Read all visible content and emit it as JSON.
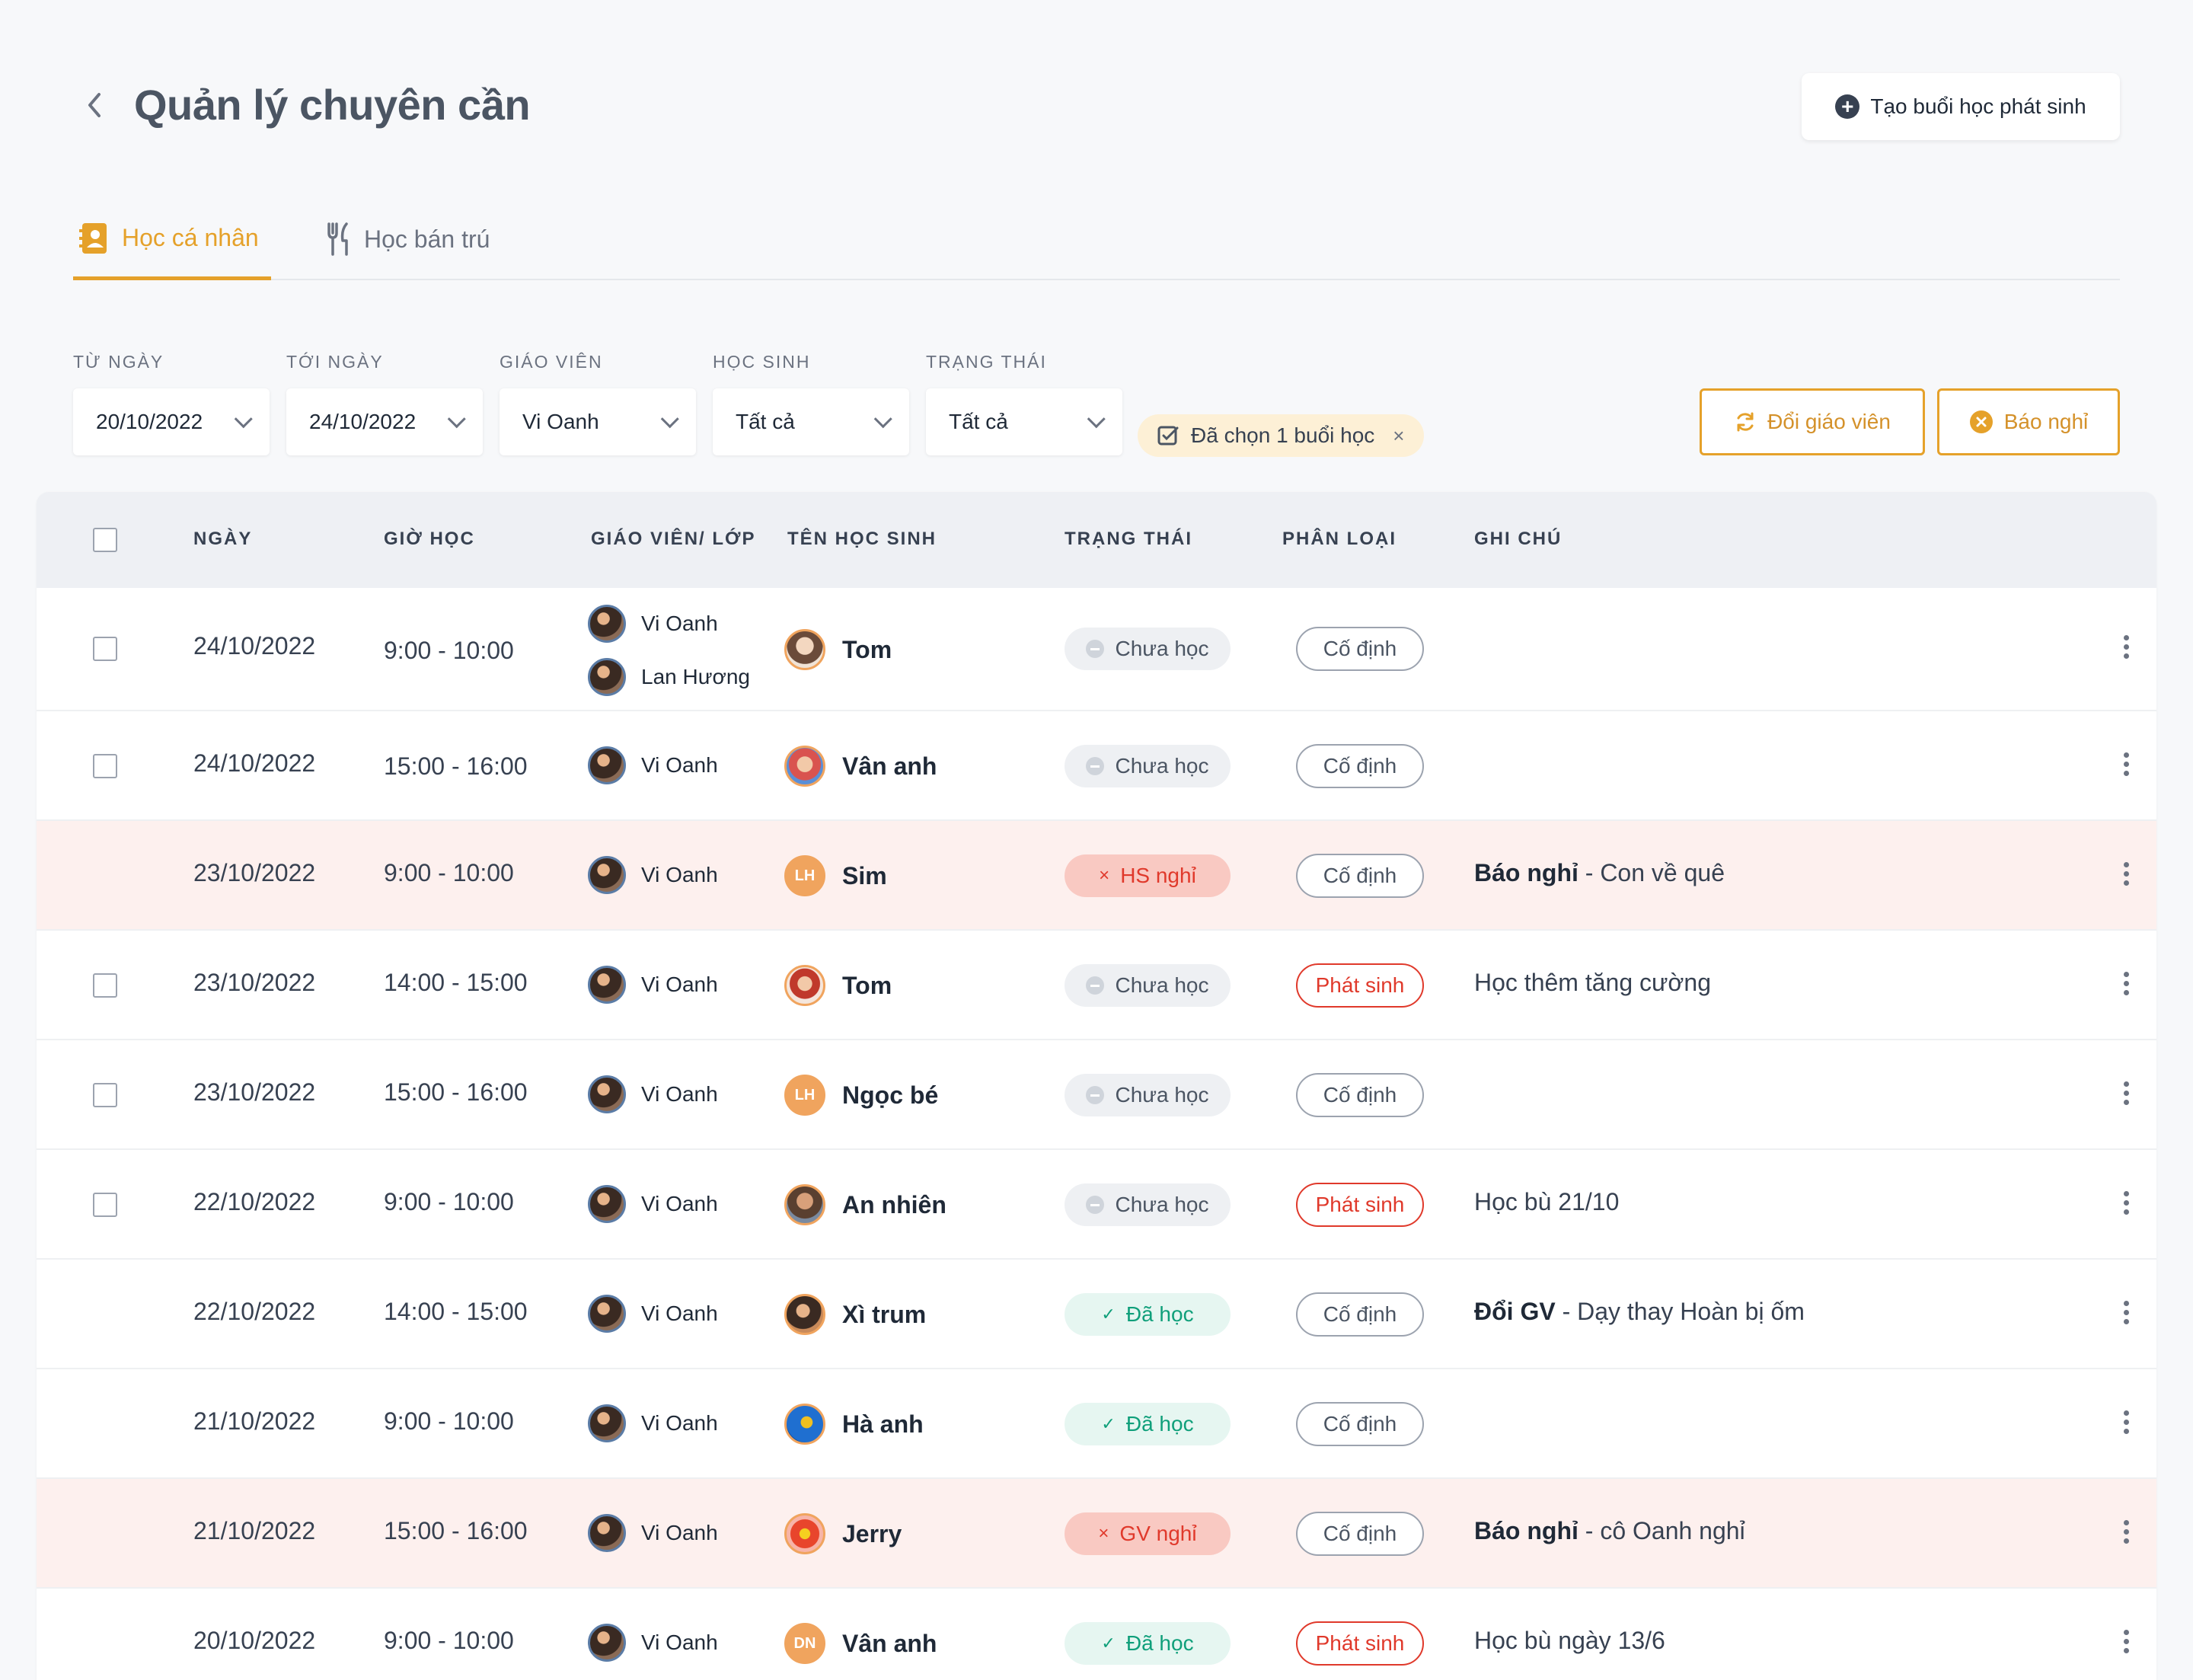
{
  "header": {
    "title": "Quản lý chuyên cần",
    "create_button": "Tạo buổi học phát sinh"
  },
  "tabs": [
    {
      "label": "Học cá nhân",
      "active": true,
      "icon": "contact-book-icon"
    },
    {
      "label": "Học bán trú",
      "active": false,
      "icon": "fork-knife-icon"
    }
  ],
  "filters": {
    "from_label": "TỪ NGÀY",
    "from_value": "20/10/2022",
    "to_label": "TỚI NGÀY",
    "to_value": "24/10/2022",
    "teacher_label": "GIÁO VIÊN",
    "teacher_value": "Vi Oanh",
    "student_label": "HỌC SINH",
    "student_value": "Tất cả",
    "status_label": "TRẠNG THÁI",
    "status_value": "Tất cả",
    "selected_chip": "Đã chọn 1 buổi học"
  },
  "actions": {
    "change_teacher": "Đổi giáo viên",
    "report_absence": "Báo nghỉ"
  },
  "colors": {
    "accent": "#e5a12a",
    "absent_row": "#fdf0ee",
    "done": "#0f9f7a",
    "alert": "#e0392b"
  },
  "table": {
    "headers": [
      "NGÀY",
      "GIỜ HỌC",
      "GIÁO VIÊN/ LỚP",
      "TÊN HỌC SINH",
      "TRẠNG THÁI",
      "PHÂN LOẠI",
      "GHI CHÚ"
    ],
    "rows": [
      {
        "date": "24/10/2022",
        "time": "9:00 - 10:00",
        "teacher": "Vi Oanh",
        "teacher2": "Lan Hương",
        "student": "Tom",
        "status": "Chưa học",
        "kind": "Cố định",
        "note_bold": "",
        "note": ""
      },
      {
        "date": "24/10/2022",
        "time": "15:00 - 16:00",
        "teacher": "Vi Oanh",
        "student": "Vân anh",
        "status": "Chưa học",
        "kind": "Cố định",
        "note_bold": "",
        "note": ""
      },
      {
        "date": "23/10/2022",
        "time": "9:00 - 10:00",
        "teacher": "Vi Oanh",
        "student": "Sim",
        "student_initials": "LH",
        "status": "HS nghỉ",
        "kind": "Cố định",
        "note_bold": "Báo nghỉ",
        "note": " - Con về quê"
      },
      {
        "date": "23/10/2022",
        "time": "14:00 - 15:00",
        "teacher": "Vi Oanh",
        "student": "Tom",
        "status": "Chưa học",
        "kind": "Phát sinh",
        "note_bold": "",
        "note": "Học thêm tăng cường"
      },
      {
        "date": "23/10/2022",
        "time": "15:00 - 16:00",
        "teacher": "Vi Oanh",
        "student": "Ngọc bé",
        "student_initials": "LH",
        "status": "Chưa học",
        "kind": "Cố định",
        "note_bold": "",
        "note": ""
      },
      {
        "date": "22/10/2022",
        "time": "9:00 - 10:00",
        "teacher": "Vi Oanh",
        "student": "An nhiên",
        "status": "Chưa học",
        "kind": "Phát sinh",
        "note_bold": "",
        "note": "Học bù 21/10"
      },
      {
        "date": "22/10/2022",
        "time": "14:00 - 15:00",
        "teacher": "Vi Oanh",
        "student": "Xì trum",
        "status": "Đã học",
        "kind": "Cố định",
        "note_bold": "Đổi GV",
        "note": " - Dạy thay Hoàn bị ốm"
      },
      {
        "date": "21/10/2022",
        "time": "9:00 - 10:00",
        "teacher": "Vi Oanh",
        "student": "Hà anh",
        "status": "Đã học",
        "kind": "Cố định",
        "note_bold": "",
        "note": ""
      },
      {
        "date": "21/10/2022",
        "time": "15:00 - 16:00",
        "teacher": "Vi Oanh",
        "student": "Jerry",
        "status": "GV nghỉ",
        "kind": "Cố định",
        "note_bold": "Báo nghỉ",
        "note": " - cô Oanh nghỉ"
      },
      {
        "date": "20/10/2022",
        "time": "9:00 - 10:00",
        "teacher": "Vi Oanh",
        "student": "Vân anh",
        "student_initials": "DN",
        "status": "Đã học",
        "kind": "Phát sinh",
        "note_bold": "",
        "note": "Học bù ngày 13/6"
      }
    ]
  }
}
